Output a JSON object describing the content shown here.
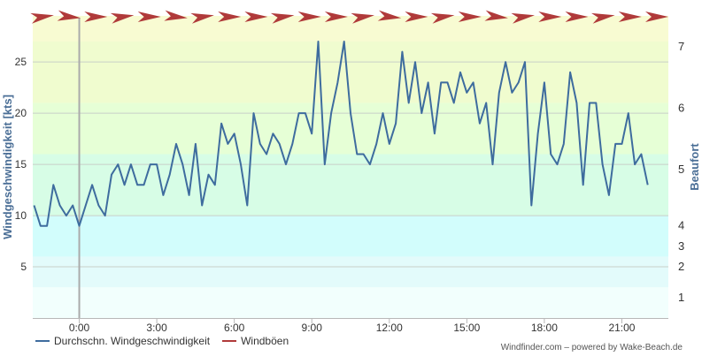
{
  "chart_data": {
    "type": "line",
    "y_left": {
      "label": "Windgeschwindigkeit [kts]",
      "range": [
        0,
        29.5
      ],
      "ticks": [
        5,
        10,
        15,
        20,
        25
      ]
    },
    "y_right": {
      "label": "Beaufort",
      "ticks": [
        {
          "label": "1",
          "kts": 2
        },
        {
          "label": "2",
          "kts": 5
        },
        {
          "label": "3",
          "kts": 7
        },
        {
          "label": "4",
          "kts": 9
        },
        {
          "label": "5",
          "kts": 14.5
        },
        {
          "label": "6",
          "kts": 20.5
        },
        {
          "label": "7",
          "kts": 26.5
        }
      ]
    },
    "x": {
      "range_hours": [
        -1.8,
        22.8
      ],
      "ticks": [
        "0:00",
        "3:00",
        "6:00",
        "9:00",
        "12:00",
        "15:00",
        "18:00",
        "21:00"
      ],
      "tick_hours": [
        0,
        3,
        6,
        9,
        12,
        15,
        18,
        21
      ]
    },
    "now_marker_hours": 0,
    "bands": [
      {
        "from": 0,
        "to": 3,
        "color": "#f2fffd"
      },
      {
        "from": 3,
        "to": 6,
        "color": "#e3fbfb"
      },
      {
        "from": 6,
        "to": 10,
        "color": "#d2fdfc"
      },
      {
        "from": 10,
        "to": 16,
        "color": "#d7fde6"
      },
      {
        "from": 16,
        "to": 21,
        "color": "#e6ffd6"
      },
      {
        "from": 21,
        "to": 27,
        "color": "#f0fccf"
      },
      {
        "from": 27,
        "to": 29.5,
        "color": "#f8fbd2"
      }
    ],
    "series": [
      {
        "name": "Durchschn. Windgeschwindigkeit",
        "color": "#3e6c9e",
        "start_hour": -1.75,
        "step_hours": 0.25,
        "values": [
          11,
          9,
          9,
          13,
          11,
          10,
          11,
          9,
          11,
          13,
          11,
          10,
          14,
          15,
          13,
          15,
          13,
          13,
          15,
          15,
          12,
          14,
          17,
          15,
          12,
          17,
          11,
          14,
          13,
          19,
          17,
          18,
          15,
          11,
          20,
          17,
          16,
          18,
          17,
          15,
          17,
          20,
          20,
          18,
          27,
          15,
          20,
          23,
          27,
          20,
          16,
          16,
          15,
          17,
          20,
          17,
          19,
          26,
          21,
          25,
          20,
          23,
          18,
          23,
          23,
          21,
          24,
          22,
          23,
          19,
          21,
          15,
          22,
          25,
          22,
          23,
          25,
          11,
          18,
          23,
          16,
          15,
          17,
          24,
          21,
          13,
          21,
          21,
          15,
          12,
          17,
          17,
          20,
          15,
          16,
          13
        ]
      }
    ],
    "gust_series": {
      "name": "Windböen",
      "color": "#b03a3a",
      "count": 24
    },
    "legend_placement": "bottom-left",
    "grid": true
  },
  "legend": [
    {
      "label": "Durchschn. Windgeschwindigkeit",
      "color": "#3e6c9e"
    },
    {
      "label": "Windböen",
      "color": "#b03a3a"
    }
  ],
  "credit": "Windfinder.com – powered by Wake-Beach.de"
}
